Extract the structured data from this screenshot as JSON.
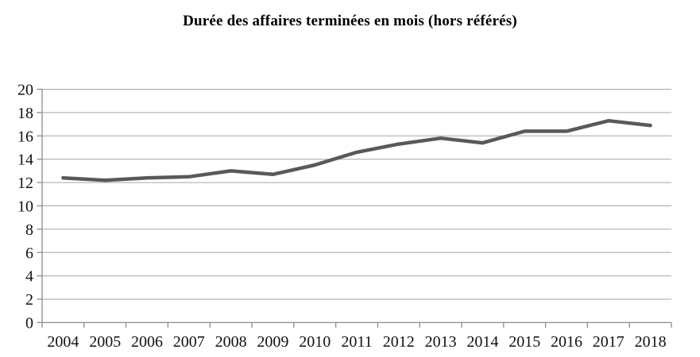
{
  "chart_data": {
    "type": "line",
    "title": "Durée des affaires terminées en mois (hors référés)",
    "categories": [
      "2004",
      "2005",
      "2006",
      "2007",
      "2008",
      "2009",
      "2010",
      "2011",
      "2012",
      "2013",
      "2014",
      "2015",
      "2016",
      "2017",
      "2018"
    ],
    "values": [
      12.4,
      12.2,
      12.4,
      12.5,
      13.0,
      12.7,
      13.5,
      14.6,
      15.3,
      15.8,
      15.4,
      16.4,
      16.4,
      17.3,
      16.9
    ],
    "xlabel": "",
    "ylabel": "",
    "ylim": [
      0,
      20
    ],
    "ytick_step": 2,
    "ytick_labels": [
      "0",
      "2",
      "4",
      "6",
      "8",
      "10",
      "12",
      "14",
      "16",
      "18",
      "20"
    ],
    "grid": true,
    "legend_position": "none",
    "line_color": "#595959",
    "grid_color": "#a6a6a6",
    "axis_color": "#8c8c8c",
    "label_color": "#111111"
  }
}
